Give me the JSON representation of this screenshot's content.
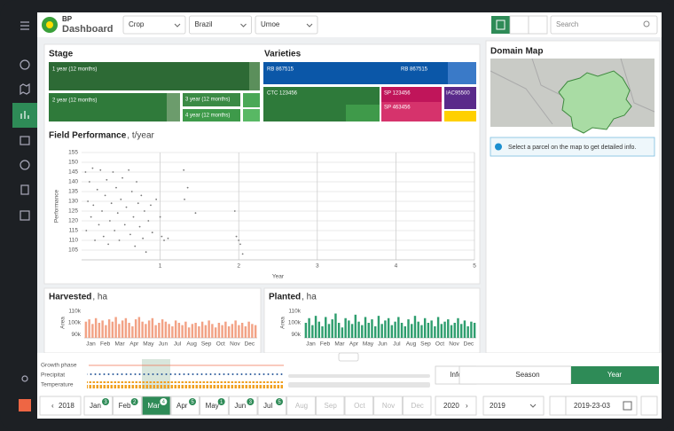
{
  "header": {
    "brand": "BP",
    "title": "Dashboard",
    "filters": [
      "Crop",
      "Brazil",
      "Umoe"
    ],
    "search": "Search"
  },
  "stage": {
    "title": "Stage",
    "items": [
      "1 year (12 months)",
      "2 year (12 months)",
      "3 year (12 months)",
      "4 year (12 months)"
    ]
  },
  "varieties": {
    "title": "Varieties",
    "items": [
      "RB 867515",
      "RB 867515",
      "CTC 123456",
      "SP 123456",
      "SP 463456",
      "IAC95500"
    ]
  },
  "chart_data": [
    {
      "type": "scatter",
      "title": "Field Performance",
      "unit": ", t/year",
      "x_label": "Year",
      "y_label": "Performance",
      "color": "#777777",
      "grid": true,
      "xlim": [
        0,
        5
      ],
      "ylim": [
        100,
        155
      ],
      "xticks": [
        1,
        2,
        3,
        4,
        5
      ],
      "yticks": [
        105,
        110,
        115,
        120,
        125,
        130,
        135,
        140,
        145,
        150,
        155
      ],
      "x": [
        0.05,
        0.06,
        0.08,
        0.1,
        0.12,
        0.14,
        0.15,
        0.17,
        0.2,
        0.22,
        0.24,
        0.26,
        0.28,
        0.3,
        0.32,
        0.34,
        0.36,
        0.38,
        0.4,
        0.42,
        0.44,
        0.46,
        0.48,
        0.5,
        0.52,
        0.55,
        0.57,
        0.6,
        0.62,
        0.64,
        0.66,
        0.68,
        0.7,
        0.72,
        0.74,
        0.76,
        0.78,
        0.8,
        0.82,
        0.85,
        0.88,
        0.9,
        0.95,
        1.0,
        1.02,
        1.05,
        1.1,
        1.3,
        1.31,
        1.35,
        1.45,
        1.95,
        1.97,
        2.0,
        2.02,
        2.05
      ],
      "values": [
        145,
        115,
        130,
        140,
        122,
        147,
        128,
        110,
        136,
        118,
        146,
        125,
        112,
        133,
        141,
        108,
        120,
        129,
        145,
        115,
        137,
        124,
        110,
        131,
        142,
        118,
        127,
        146,
        113,
        135,
        122,
        107,
        140,
        129,
        117,
        133,
        111,
        125,
        104,
        120,
        128,
        114,
        131,
        122,
        112,
        110,
        111,
        146,
        131,
        137,
        124,
        125,
        112,
        110,
        108,
        103
      ]
    },
    {
      "type": "bar",
      "title": "Harvested",
      "unit": ", ha",
      "y_label": "Area",
      "color": "#f2a285",
      "xlim": [
        0.5,
        52.5
      ],
      "ylim": [
        87000,
        113000
      ],
      "yticks": [
        {
          "value": 90000,
          "label": "90k"
        },
        {
          "value": 100000,
          "label": "100k"
        },
        {
          "value": 110000,
          "label": "110k"
        }
      ],
      "xticks": [
        {
          "value": 2.5,
          "label": "Jan"
        },
        {
          "value": 6.8,
          "label": "Feb"
        },
        {
          "value": 11.2,
          "label": "Mar"
        },
        {
          "value": 15.5,
          "label": "Apr"
        },
        {
          "value": 19.8,
          "label": "May"
        },
        {
          "value": 24.2,
          "label": "Jun"
        },
        {
          "value": 28.5,
          "label": "Jul"
        },
        {
          "value": 32.8,
          "label": "Aug"
        },
        {
          "value": 37.2,
          "label": "Sep"
        },
        {
          "value": 41.5,
          "label": "Oct"
        },
        {
          "value": 45.8,
          "label": "Nov"
        },
        {
          "value": 50.2,
          "label": "Dec"
        }
      ],
      "x": [
        1,
        2,
        3,
        4,
        5,
        6,
        7,
        8,
        9,
        10,
        11,
        12,
        13,
        14,
        15,
        16,
        17,
        18,
        19,
        20,
        21,
        22,
        23,
        24,
        25,
        26,
        27,
        28,
        29,
        30,
        31,
        32,
        33,
        34,
        35,
        36,
        37,
        38,
        39,
        40,
        41,
        42,
        43,
        44,
        45,
        46,
        47,
        48,
        49,
        50,
        51,
        52
      ],
      "values": [
        101000,
        103000,
        99000,
        104000,
        100000,
        102000,
        98000,
        103000,
        101000,
        105000,
        99000,
        102000,
        104000,
        100000,
        97000,
        103000,
        105000,
        101000,
        99000,
        102000,
        104000,
        98000,
        100000,
        103000,
        101000,
        99000,
        97000,
        102000,
        100000,
        98000,
        101000,
        96000,
        99000,
        100000,
        97000,
        101000,
        98000,
        102000,
        99000,
        96000,
        100000,
        98000,
        101000,
        97000,
        99000,
        102000,
        98000,
        100000,
        97000,
        101000,
        99000,
        98000
      ]
    },
    {
      "type": "bar",
      "title": "Planted",
      "unit": ", ha",
      "y_label": "Area",
      "color": "#2e9e6e",
      "xlim": [
        0.5,
        52.5
      ],
      "ylim": [
        87000,
        113000
      ],
      "yticks": [
        {
          "value": 90000,
          "label": "90k"
        },
        {
          "value": 100000,
          "label": "100k"
        },
        {
          "value": 110000,
          "label": "110k"
        }
      ],
      "xticks": [
        {
          "value": 2.5,
          "label": "Jan"
        },
        {
          "value": 6.8,
          "label": "Feb"
        },
        {
          "value": 11.2,
          "label": "Mar"
        },
        {
          "value": 15.5,
          "label": "Apr"
        },
        {
          "value": 19.8,
          "label": "May"
        },
        {
          "value": 24.2,
          "label": "Jun"
        },
        {
          "value": 28.5,
          "label": "Jul"
        },
        {
          "value": 32.8,
          "label": "Aug"
        },
        {
          "value": 37.2,
          "label": "Sep"
        },
        {
          "value": 41.5,
          "label": "Oct"
        },
        {
          "value": 45.8,
          "label": "Nov"
        },
        {
          "value": 50.2,
          "label": "Dec"
        }
      ],
      "x": [
        1,
        2,
        3,
        4,
        5,
        6,
        7,
        8,
        9,
        10,
        11,
        12,
        13,
        14,
        15,
        16,
        17,
        18,
        19,
        20,
        21,
        22,
        23,
        24,
        25,
        26,
        27,
        28,
        29,
        30,
        31,
        32,
        33,
        34,
        35,
        36,
        37,
        38,
        39,
        40,
        41,
        42,
        43,
        44,
        45,
        46,
        47,
        48,
        49,
        50,
        51,
        52
      ],
      "values": [
        100000,
        104000,
        98000,
        106000,
        101000,
        97000,
        105000,
        99000,
        103000,
        108000,
        100000,
        96000,
        104000,
        102000,
        99000,
        107000,
        101000,
        98000,
        105000,
        100000,
        103000,
        97000,
        106000,
        99000,
        102000,
        104000,
        98000,
        101000,
        105000,
        100000,
        97000,
        103000,
        99000,
        106000,
        101000,
        98000,
        104000,
        100000,
        102000,
        97000,
        105000,
        99000,
        101000,
        103000,
        98000,
        100000,
        104000,
        99000,
        102000,
        97000,
        101000,
        100000
      ]
    }
  ],
  "domain_map": {
    "title": "Domain Map",
    "info": "Select a parcel on the map to get detailed info."
  },
  "timeline": {
    "rows": [
      "Growth phase",
      "Precipitat",
      "Temperature"
    ],
    "info": "Info",
    "modes": [
      "Season",
      "Year"
    ],
    "prev_year": "2018",
    "next_year": "2020",
    "year": "2019",
    "date": "2019-23-03",
    "months": [
      {
        "name": "Jan",
        "count": 3
      },
      {
        "name": "Feb",
        "count": 2
      },
      {
        "name": "Mar",
        "count": 4
      },
      {
        "name": "Apr",
        "count": 5
      },
      {
        "name": "May",
        "count": 1
      },
      {
        "name": "Jun",
        "count": 3
      },
      {
        "name": "Jul",
        "count": 5
      },
      {
        "name": "Aug"
      },
      {
        "name": "Sep"
      },
      {
        "name": "Oct"
      },
      {
        "name": "Nov"
      },
      {
        "name": "Dec"
      }
    ]
  }
}
